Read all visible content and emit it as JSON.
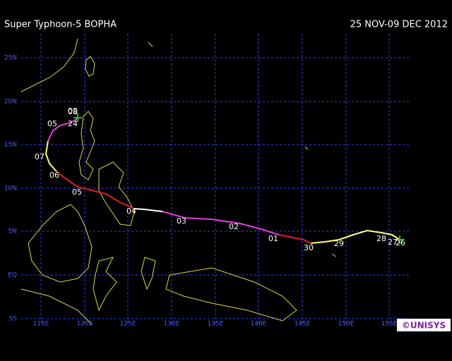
{
  "header": {
    "title": "Super Typhoon-5 BOPHA",
    "date": "25 NOV-09 DEC 2012"
  },
  "map": {
    "lat_labels": [
      "25N",
      "20N",
      "15N",
      "10N",
      "5N",
      "EQ",
      "5S"
    ],
    "lon_labels": [
      "115E",
      "120E",
      "125E",
      "130E",
      "135E",
      "140E",
      "145E",
      "150E",
      "155E"
    ],
    "track_labels": [
      "09",
      "08",
      "24",
      "05",
      "07",
      "06",
      "05",
      "04",
      "03",
      "02",
      "01",
      "30",
      "29",
      "28",
      "27",
      "26"
    ]
  },
  "footer": {
    "credit": "©UNISYS"
  }
}
